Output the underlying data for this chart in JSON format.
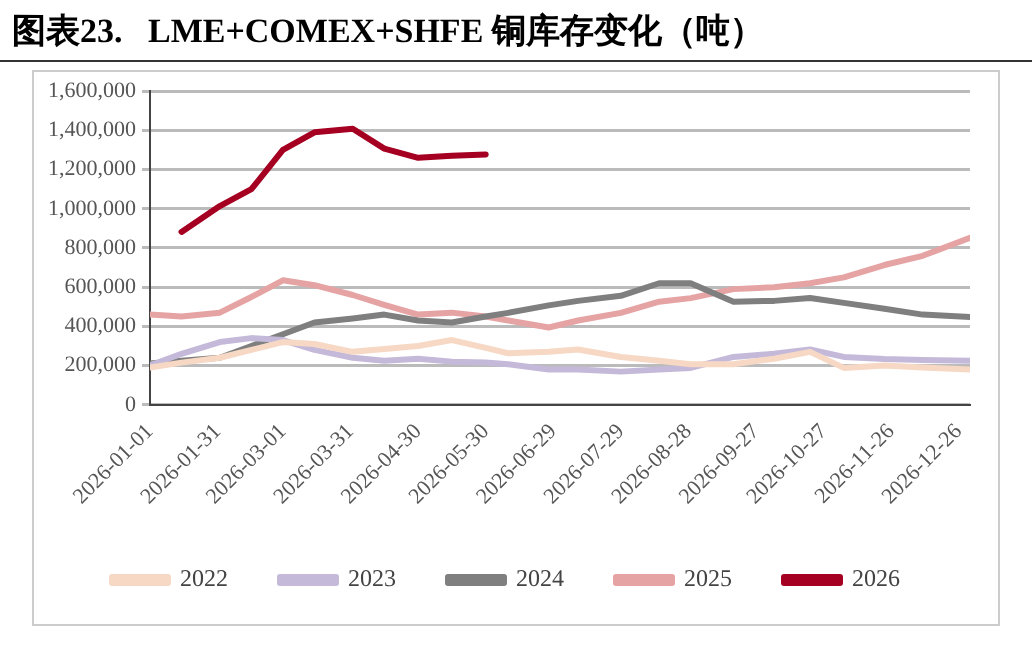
{
  "chart_data": {
    "type": "line",
    "title": "图表23.   LME+COMEX+SHFE 铜库存变化（吨）",
    "x": [
      "2026-01-01",
      "2026-01-15",
      "2026-02-01",
      "2026-02-15",
      "2026-03-01",
      "2026-03-15",
      "2026-04-01",
      "2026-04-15",
      "2026-04-30",
      "2026-05-15",
      "2026-05-30",
      "2026-06-09",
      "2026-06-27",
      "2026-07-10",
      "2026-07-29",
      "2026-08-15",
      "2026-08-29",
      "2026-09-17",
      "2026-10-05",
      "2026-10-21",
      "2026-11-05",
      "2026-11-23",
      "2026-12-10",
      "2026-12-31"
    ],
    "series": [
      {
        "name": "2022",
        "color": "#f6d8c4",
        "values": [
          190000,
          215000,
          240000,
          280000,
          320000,
          310000,
          270000,
          285000,
          300000,
          330000,
          290000,
          263000,
          270000,
          282000,
          244000,
          225000,
          207000,
          207000,
          235000,
          270000,
          188000,
          200000,
          190000,
          180000
        ]
      },
      {
        "name": "2023",
        "color": "#c5b9da",
        "values": [
          200000,
          260000,
          320000,
          340000,
          330000,
          280000,
          240000,
          225000,
          235000,
          220000,
          215000,
          207000,
          180000,
          180000,
          169000,
          180000,
          188000,
          244000,
          260000,
          282000,
          244000,
          233000,
          228000,
          225000
        ]
      },
      {
        "name": "2024",
        "color": "#7f7f7f",
        "values": [
          210000,
          225000,
          240000,
          300000,
          360000,
          420000,
          440000,
          460000,
          430000,
          420000,
          450000,
          469000,
          507000,
          530000,
          556000,
          620000,
          620000,
          526000,
          530000,
          545000,
          520000,
          490000,
          460000,
          448000
        ]
      },
      {
        "name": "2025",
        "color": "#e6a3a3",
        "values": [
          460000,
          450000,
          470000,
          550000,
          635000,
          610000,
          560000,
          510000,
          460000,
          470000,
          450000,
          430000,
          394000,
          430000,
          469000,
          526000,
          544000,
          590000,
          600000,
          620000,
          650000,
          713000,
          760000,
          852000
        ]
      },
      {
        "name": "2026",
        "color": "#a50021",
        "values": [
          null,
          882000,
          1014000,
          1100000,
          1300000,
          1390000,
          1408000,
          1307000,
          1260000,
          1270000,
          1277000,
          null,
          null,
          null,
          null,
          null,
          null,
          null,
          null,
          null,
          null,
          null,
          null,
          null
        ]
      }
    ],
    "xlim": [
      "2026-01-01",
      "2026-12-31"
    ],
    "xticks": [
      "2026-01-01",
      "2026-01-31",
      "2026-03-01",
      "2026-03-31",
      "2026-04-30",
      "2026-05-30",
      "2026-06-29",
      "2026-07-29",
      "2026-08-28",
      "2026-09-27",
      "2026-10-27",
      "2026-11-26",
      "2026-12-26"
    ],
    "ylim": [
      0,
      1600000
    ],
    "yticks": [
      {
        "value": 0,
        "label": "0"
      },
      {
        "value": 200000,
        "label": "200,000"
      },
      {
        "value": 400000,
        "label": "400,000"
      },
      {
        "value": 600000,
        "label": "600,000"
      },
      {
        "value": 800000,
        "label": "800,000"
      },
      {
        "value": 1000000,
        "label": "1,000,000"
      },
      {
        "value": 1200000,
        "label": "1,200,000"
      },
      {
        "value": 1400000,
        "label": "1,400,000"
      },
      {
        "value": 1600000,
        "label": "1,600,000"
      }
    ],
    "grid": "y",
    "legend": "bottom",
    "marker": "none",
    "line_style": "solid"
  }
}
